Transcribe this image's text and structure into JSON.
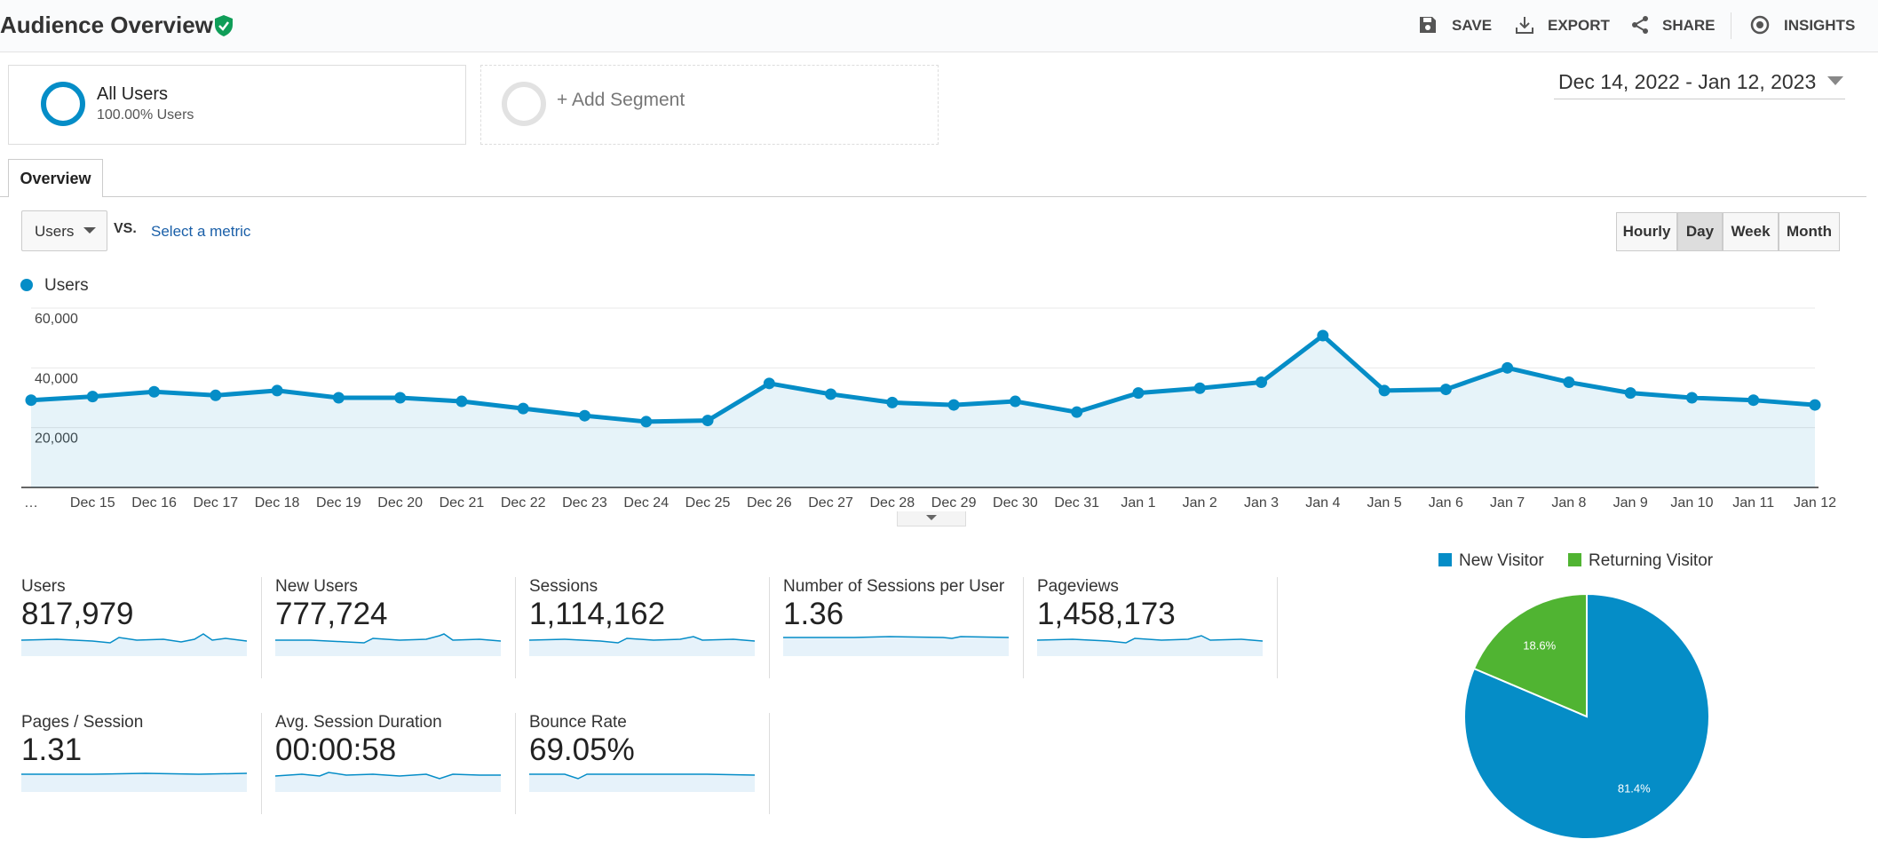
{
  "header": {
    "title": "Audience Overview",
    "actions": [
      "SAVE",
      "EXPORT",
      "SHARE",
      "INSIGHTS"
    ]
  },
  "segments": [
    {
      "name": "All Users",
      "detail": "100.00% Users"
    },
    {
      "name": "+ Add Segment"
    }
  ],
  "date_range": "Dec 14, 2022 - Jan 12, 2023",
  "tabs": [
    "Overview"
  ],
  "metric_selector": {
    "metric": "Users",
    "vs": "VS.",
    "second": "Select a metric"
  },
  "granularity": [
    "Hourly",
    "Day",
    "Week",
    "Month"
  ],
  "chart_data": [
    {
      "type": "line",
      "categories": [
        "…",
        "Dec 15",
        "Dec 16",
        "Dec 17",
        "Dec 18",
        "Dec 19",
        "Dec 20",
        "Dec 21",
        "Dec 22",
        "Dec 23",
        "Dec 24",
        "Dec 25",
        "Dec 26",
        "Dec 27",
        "Dec 28",
        "Dec 29",
        "Dec 30",
        "Dec 31",
        "Jan 1",
        "Jan 2",
        "Jan 3",
        "Jan 4",
        "Jan 5",
        "Jan 6",
        "Jan 7",
        "Jan 8",
        "Jan 9",
        "Jan 10",
        "Jan 11",
        "Jan 12"
      ],
      "series": [
        {
          "name": "Users",
          "color": "#058dc7",
          "values": [
            29200,
            30400,
            32000,
            30800,
            32400,
            30000,
            30000,
            28800,
            26400,
            24000,
            22000,
            22400,
            34800,
            31200,
            28400,
            27600,
            28800,
            25200,
            31600,
            33200,
            35200,
            50800,
            32400,
            32800,
            40000,
            35200,
            31600,
            30000,
            29200,
            27600
          ]
        }
      ],
      "ylim": [
        0,
        60000
      ],
      "yticks": [
        {
          "value": 20000,
          "label": "20,000"
        },
        {
          "value": 40000,
          "label": "40,000"
        },
        {
          "value": 60000,
          "label": "60,000"
        }
      ],
      "grid": true
    },
    {
      "type": "pie",
      "categories": [
        "New Visitor",
        "Returning Visitor"
      ],
      "values": [
        81.4,
        18.6
      ],
      "value_labels": [
        "81.4%",
        "18.6%"
      ],
      "colors": [
        "#058dc7",
        "#50b432"
      ]
    }
  ],
  "metrics": [
    {
      "label": "Users",
      "value": "817,979"
    },
    {
      "label": "New Users",
      "value": "777,724"
    },
    {
      "label": "Sessions",
      "value": "1,114,162"
    },
    {
      "label": "Number of Sessions per User",
      "value": "1.36"
    },
    {
      "label": "Pageviews",
      "value": "1,458,173"
    },
    {
      "label": "Pages / Session",
      "value": "1.31"
    },
    {
      "label": "Avg. Session Duration",
      "value": "00:00:58"
    },
    {
      "label": "Bounce Rate",
      "value": "69.05%"
    }
  ]
}
